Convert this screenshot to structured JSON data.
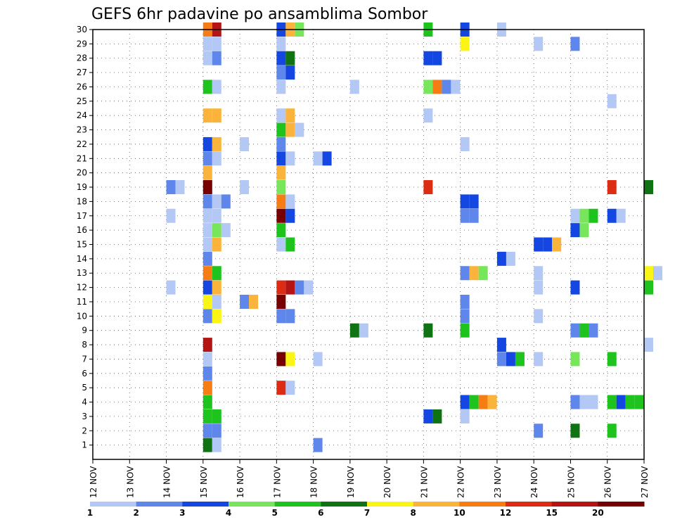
{
  "chart_data": {
    "type": "heatmap",
    "title": "GEFS 6hr padavine po ansamblima Sombor",
    "x_tick_labels": [
      "12 NOV",
      "13 NOV",
      "14 NOV",
      "15 NOV",
      "16 NOV",
      "17 NOV",
      "18 NOV",
      "19 NOV",
      "20 NOV",
      "21 NOV",
      "22 NOV",
      "23 NOV",
      "24 NOV",
      "25 NOV",
      "26 NOV",
      "27 NOV"
    ],
    "y_tick_labels": [
      "1",
      "2",
      "3",
      "4",
      "5",
      "6",
      "7",
      "8",
      "9",
      "10",
      "11",
      "12",
      "13",
      "14",
      "15",
      "16",
      "17",
      "18",
      "19",
      "20",
      "21",
      "22",
      "23",
      "24",
      "25",
      "26",
      "27",
      "28",
      "29",
      "30"
    ],
    "ylim": [
      0,
      30
    ],
    "grid": "dotted",
    "colorbar": {
      "labels": [
        "1",
        "2",
        "3",
        "4",
        "5",
        "6",
        "7",
        "8",
        "10",
        "12",
        "15",
        "20"
      ],
      "colors": [
        "#b4c8f5",
        "#5f87eb",
        "#1446e1",
        "#78e65a",
        "#1ec31e",
        "#0f7314",
        "#faf514",
        "#fab43c",
        "#f57d14",
        "#dc2d14",
        "#b41414",
        "#780000"
      ]
    },
    "cells": [
      [
        30,
        "15 NOV",
        8
      ],
      [
        30,
        "15 NOV",
        10
      ],
      [
        30,
        "17 NOV",
        2
      ],
      [
        30,
        "17 NOV",
        7
      ],
      [
        30,
        "17 NOV",
        3
      ],
      [
        30,
        "21 NOV",
        4
      ],
      [
        30,
        "22 NOV",
        2
      ],
      [
        30,
        "23 NOV",
        0
      ],
      [
        29,
        "15 NOV",
        0
      ],
      [
        29,
        "15 NOV",
        0
      ],
      [
        29,
        "17 NOV",
        0
      ],
      [
        29,
        "22 NOV",
        6
      ],
      [
        29,
        "24 NOV",
        0
      ],
      [
        29,
        "25 NOV",
        1
      ],
      [
        28,
        "15 NOV",
        0
      ],
      [
        28,
        "15 NOV",
        1
      ],
      [
        28,
        "17 NOV",
        2
      ],
      [
        28,
        "17 NOV",
        5
      ],
      [
        28,
        "21 NOV",
        2
      ],
      [
        28,
        "21 NOV",
        2
      ],
      [
        27,
        "17 NOV",
        1
      ],
      [
        27,
        "17 NOV",
        2
      ],
      [
        26,
        "15 NOV",
        4
      ],
      [
        26,
        "15 NOV",
        0
      ],
      [
        26,
        "17 NOV",
        0
      ],
      [
        26,
        "19 NOV",
        0
      ],
      [
        26,
        "21 NOV",
        3
      ],
      [
        26,
        "21 NOV",
        8
      ],
      [
        26,
        "21 NOV",
        1
      ],
      [
        26,
        "21 NOV",
        0
      ],
      [
        25,
        "26 NOV",
        0
      ],
      [
        24,
        "15 NOV",
        7
      ],
      [
        24,
        "15 NOV",
        7
      ],
      [
        24,
        "17 NOV",
        0
      ],
      [
        24,
        "17 NOV",
        7
      ],
      [
        24,
        "21 NOV",
        0
      ],
      [
        23,
        "17 NOV",
        4
      ],
      [
        23,
        "17 NOV",
        7
      ],
      [
        23,
        "17 NOV",
        0
      ],
      [
        22,
        "15 NOV",
        2
      ],
      [
        22,
        "15 NOV",
        7
      ],
      [
        22,
        "16 NOV",
        0
      ],
      [
        22,
        "17 NOV",
        1
      ],
      [
        22,
        "22 NOV",
        0
      ],
      [
        21,
        "15 NOV",
        1
      ],
      [
        21,
        "15 NOV",
        0
      ],
      [
        21,
        "17 NOV",
        2
      ],
      [
        21,
        "17 NOV",
        0
      ],
      [
        21,
        "18 NOV",
        0
      ],
      [
        21,
        "18 NOV",
        2
      ],
      [
        20,
        "15 NOV",
        7
      ],
      [
        20,
        "17 NOV",
        7
      ],
      [
        19,
        "14 NOV",
        1
      ],
      [
        19,
        "14 NOV",
        0
      ],
      [
        19,
        "15 NOV",
        11
      ],
      [
        19,
        "16 NOV",
        0
      ],
      [
        19,
        "17 NOV",
        3
      ],
      [
        19,
        "21 NOV",
        9
      ],
      [
        19,
        "26 NOV",
        9
      ],
      [
        19,
        "27 NOV",
        5
      ],
      [
        18,
        "15 NOV",
        1
      ],
      [
        18,
        "15 NOV",
        0
      ],
      [
        18,
        "15 NOV",
        1
      ],
      [
        18,
        "17 NOV",
        8
      ],
      [
        18,
        "17 NOV",
        0
      ],
      [
        18,
        "22 NOV",
        2
      ],
      [
        18,
        "22 NOV",
        2
      ],
      [
        17,
        "14 NOV",
        0
      ],
      [
        17,
        "15 NOV",
        0
      ],
      [
        17,
        "15 NOV",
        0
      ],
      [
        17,
        "17 NOV",
        11
      ],
      [
        17,
        "17 NOV",
        2
      ],
      [
        17,
        "22 NOV",
        1
      ],
      [
        17,
        "22 NOV",
        1
      ],
      [
        17,
        "25 NOV",
        0
      ],
      [
        17,
        "25 NOV",
        3
      ],
      [
        17,
        "25 NOV",
        4
      ],
      [
        17,
        "26 NOV",
        2
      ],
      [
        17,
        "26 NOV",
        0
      ],
      [
        16,
        "15 NOV",
        0
      ],
      [
        16,
        "15 NOV",
        3
      ],
      [
        16,
        "15 NOV",
        0
      ],
      [
        16,
        "17 NOV",
        4
      ],
      [
        16,
        "25 NOV",
        2
      ],
      [
        16,
        "25 NOV",
        3
      ],
      [
        15,
        "15 NOV",
        0
      ],
      [
        15,
        "15 NOV",
        7
      ],
      [
        15,
        "17 NOV",
        0
      ],
      [
        15,
        "17 NOV",
        4
      ],
      [
        15,
        "24 NOV",
        2
      ],
      [
        15,
        "24 NOV",
        2
      ],
      [
        15,
        "24 NOV",
        7
      ],
      [
        14,
        "15 NOV",
        1
      ],
      [
        14,
        "23 NOV",
        2
      ],
      [
        14,
        "23 NOV",
        0
      ],
      [
        13,
        "15 NOV",
        8
      ],
      [
        13,
        "15 NOV",
        4
      ],
      [
        13,
        "22 NOV",
        1
      ],
      [
        13,
        "22 NOV",
        7
      ],
      [
        13,
        "22 NOV",
        3
      ],
      [
        13,
        "24 NOV",
        0
      ],
      [
        13,
        "27 NOV",
        6
      ],
      [
        13,
        "27 NOV",
        0
      ],
      [
        12,
        "14 NOV",
        0
      ],
      [
        12,
        "15 NOV",
        2
      ],
      [
        12,
        "15 NOV",
        7
      ],
      [
        12,
        "17 NOV",
        9
      ],
      [
        12,
        "17 NOV",
        10
      ],
      [
        12,
        "17 NOV",
        1
      ],
      [
        12,
        "17 NOV",
        0
      ],
      [
        12,
        "24 NOV",
        0
      ],
      [
        12,
        "25 NOV",
        2
      ],
      [
        12,
        "27 NOV",
        4
      ],
      [
        11,
        "15 NOV",
        6
      ],
      [
        11,
        "15 NOV",
        0
      ],
      [
        11,
        "16 NOV",
        1
      ],
      [
        11,
        "16 NOV",
        7
      ],
      [
        11,
        "17 NOV",
        11
      ],
      [
        11,
        "22 NOV",
        1
      ],
      [
        10,
        "15 NOV",
        1
      ],
      [
        10,
        "15 NOV",
        6
      ],
      [
        10,
        "17 NOV",
        1
      ],
      [
        10,
        "17 NOV",
        1
      ],
      [
        10,
        "22 NOV",
        1
      ],
      [
        10,
        "24 NOV",
        0
      ],
      [
        9,
        "19 NOV",
        5
      ],
      [
        9,
        "19 NOV",
        0
      ],
      [
        9,
        "21 NOV",
        5
      ],
      [
        9,
        "22 NOV",
        4
      ],
      [
        9,
        "25 NOV",
        1
      ],
      [
        9,
        "25 NOV",
        4
      ],
      [
        9,
        "25 NOV",
        1
      ],
      [
        8,
        "15 NOV",
        10
      ],
      [
        8,
        "23 NOV",
        2
      ],
      [
        8,
        "27 NOV",
        0
      ],
      [
        7,
        "15 NOV",
        0
      ],
      [
        7,
        "17 NOV",
        11
      ],
      [
        7,
        "17 NOV",
        6
      ],
      [
        7,
        "18 NOV",
        0
      ],
      [
        7,
        "23 NOV",
        1
      ],
      [
        7,
        "23 NOV",
        2
      ],
      [
        7,
        "23 NOV",
        4
      ],
      [
        7,
        "24 NOV",
        0
      ],
      [
        7,
        "25 NOV",
        3
      ],
      [
        7,
        "26 NOV",
        4
      ],
      [
        6,
        "15 NOV",
        1
      ],
      [
        5,
        "15 NOV",
        8
      ],
      [
        5,
        "17 NOV",
        9
      ],
      [
        5,
        "17 NOV",
        0
      ],
      [
        4,
        "15 NOV",
        4
      ],
      [
        4,
        "22 NOV",
        2
      ],
      [
        4,
        "22 NOV",
        4
      ],
      [
        4,
        "22 NOV",
        8
      ],
      [
        4,
        "22 NOV",
        7
      ],
      [
        4,
        "25 NOV",
        1
      ],
      [
        4,
        "25 NOV",
        0
      ],
      [
        4,
        "25 NOV",
        0
      ],
      [
        4,
        "26 NOV",
        4
      ],
      [
        4,
        "26 NOV",
        2
      ],
      [
        4,
        "26 NOV",
        4
      ],
      [
        4,
        "26 NOV",
        4
      ],
      [
        3,
        "15 NOV",
        4
      ],
      [
        3,
        "15 NOV",
        4
      ],
      [
        3,
        "21 NOV",
        2
      ],
      [
        3,
        "21 NOV",
        5
      ],
      [
        3,
        "22 NOV",
        0
      ],
      [
        2,
        "15 NOV",
        1
      ],
      [
        2,
        "15 NOV",
        1
      ],
      [
        2,
        "24 NOV",
        1
      ],
      [
        2,
        "25 NOV",
        5
      ],
      [
        2,
        "26 NOV",
        4
      ],
      [
        1,
        "15 NOV",
        5
      ],
      [
        1,
        "15 NOV",
        0
      ],
      [
        1,
        "18 NOV",
        1
      ]
    ]
  }
}
